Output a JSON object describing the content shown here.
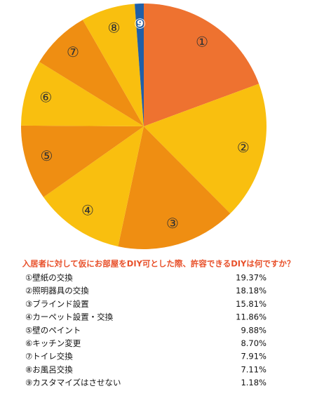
{
  "chart_data": {
    "type": "pie",
    "title": "入居者に対して仮にお部屋をDIY可とした際、許容できるDIYは何ですか？",
    "categories": [
      "①壁紙の交換",
      "②照明器具の交換",
      "③ブラインド設置",
      "④カーペット設置・交換",
      "⑤壁のペイント",
      "⑥キッチン変更",
      "⑦トイレ交換",
      "⑧お風呂交換",
      "⑨カスタマイズはさせない"
    ],
    "slice_labels": [
      "①",
      "②",
      "③",
      "④",
      "⑤",
      "⑥",
      "⑦",
      "⑧",
      "⑨"
    ],
    "values": [
      19.37,
      18.18,
      15.81,
      11.86,
      9.88,
      8.7,
      7.91,
      7.11,
      1.18
    ],
    "value_labels": [
      "19.37%",
      "18.18%",
      "15.81%",
      "11.86%",
      "9.88%",
      "8.70%",
      "7.91%",
      "7.11%",
      "1.18%"
    ],
    "colors": [
      "#ee7230",
      "#f9bf0f",
      "#ef8e12",
      "#f9bf0f",
      "#ef8e12",
      "#f9bf0f",
      "#ef8e12",
      "#f9bf0f",
      "#1f5fa8"
    ]
  }
}
